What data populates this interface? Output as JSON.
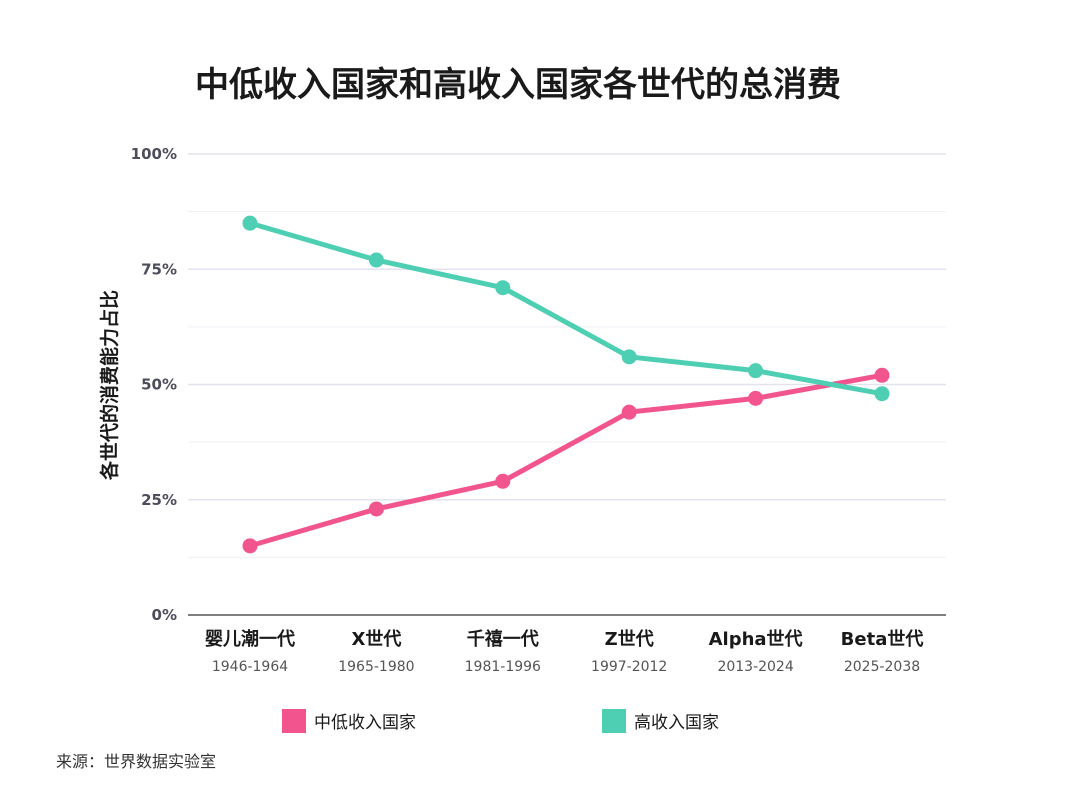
{
  "chart_data": {
    "type": "line",
    "title": "中低收入国家和高收入国家各世代的总消费",
    "ylabel": "各世代的消费能力占比",
    "xlabel": "",
    "ylim": [
      0,
      100
    ],
    "yticks": [
      "0%",
      "25%",
      "50%",
      "75%",
      "100%"
    ],
    "yticks_values": [
      0,
      25,
      50,
      75,
      100
    ],
    "categories": [
      "婴儿潮一代",
      "X世代",
      "千禧一代",
      "Z世代",
      "Alpha世代",
      "Beta世代"
    ],
    "category_years": [
      "1946-1964",
      "1965-1980",
      "1981-1996",
      "1997-2012",
      "2013-2024",
      "2025-2038"
    ],
    "series": [
      {
        "name": "中低收入国家",
        "color": "#f2558e",
        "values": [
          15,
          23,
          29,
          44,
          47,
          52
        ]
      },
      {
        "name": "高收入国家",
        "color": "#4ecfb3",
        "values": [
          85,
          77,
          71,
          56,
          53,
          48
        ]
      }
    ],
    "grid": true,
    "legend": "bottom"
  },
  "source": "来源：世界数据实验室"
}
